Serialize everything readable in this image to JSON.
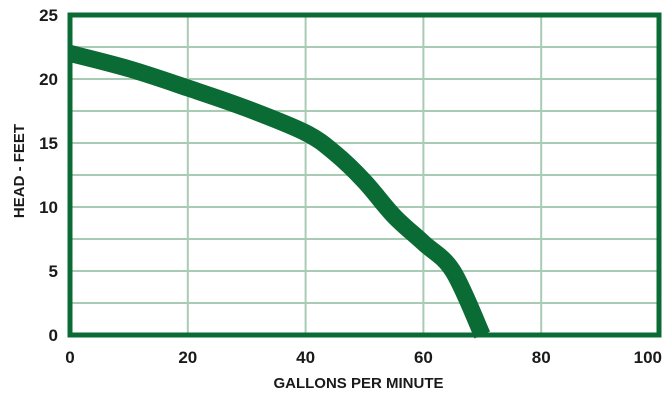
{
  "chart_data": {
    "type": "line",
    "title": "",
    "xlabel": "GALLONS PER MINUTE",
    "ylabel": "HEAD - FEET",
    "xlim": [
      0,
      100
    ],
    "ylim": [
      0,
      25
    ],
    "x_ticks": [
      "0",
      "20",
      "40",
      "60",
      "80",
      "100"
    ],
    "y_ticks": [
      "0",
      "5",
      "10",
      "15",
      "20",
      "25"
    ],
    "grid": true,
    "series": [
      {
        "color": "#0b6b34",
        "points": [
          [
            0,
            22
          ],
          [
            10,
            20.8
          ],
          [
            20,
            19.3
          ],
          [
            30,
            17.7
          ],
          [
            40,
            15.8
          ],
          [
            45,
            14.2
          ],
          [
            50,
            12.0
          ],
          [
            55,
            9.3
          ],
          [
            60,
            7.2
          ],
          [
            65,
            5.0
          ],
          [
            70,
            0
          ]
        ]
      }
    ],
    "colors": {
      "frame": "#0b6b34",
      "grid": "#a8cbb4",
      "curve": "#0b6b34"
    }
  }
}
